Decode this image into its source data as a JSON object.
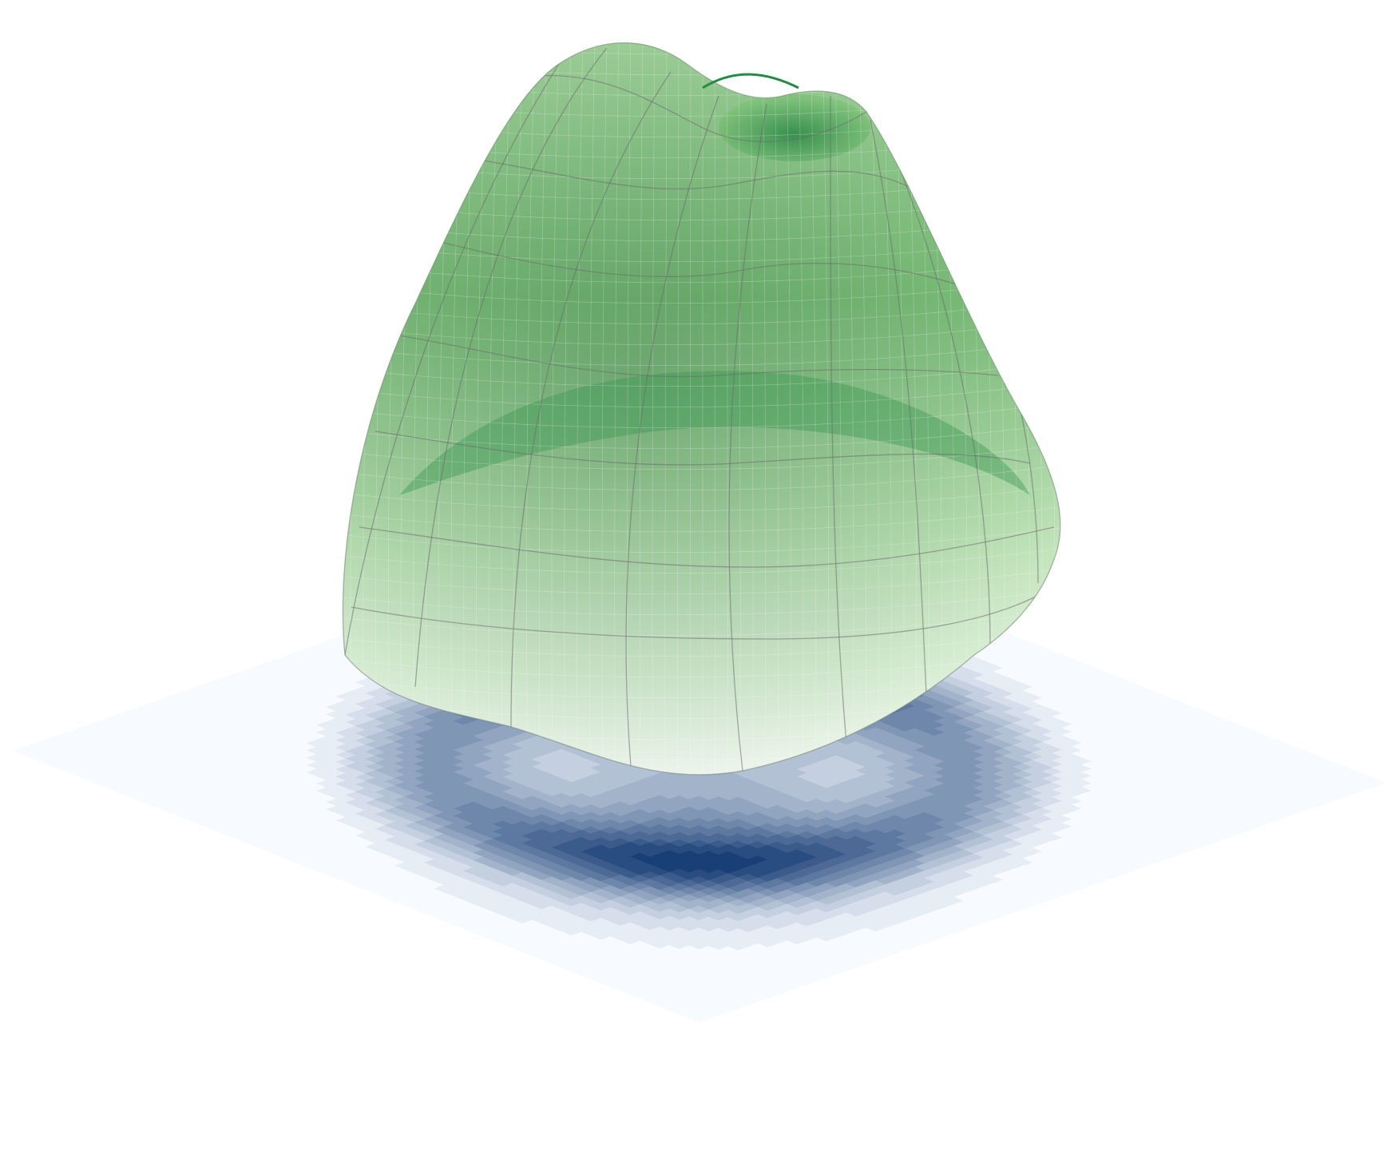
{
  "chart_data": {
    "type": "surface3d",
    "surface_colorscale": "Greens",
    "contour_colorscale": "Blues",
    "contour_levels": 14,
    "grid": false,
    "axes_visible": false,
    "x_range": [
      -1,
      1
    ],
    "y_range": [
      -1,
      1
    ],
    "peaks": [
      {
        "x": -0.3,
        "y": 0.3,
        "amplitude": 1.0
      },
      {
        "x": 0.3,
        "y": -0.3,
        "amplitude": 0.95
      }
    ],
    "colors": {
      "surface_light": "#f7fcf5",
      "surface_dark": "#238b45",
      "contour_light": "#f7fbff",
      "contour_dark": "#08306b",
      "mesh_line": "#6b6b6b"
    }
  }
}
